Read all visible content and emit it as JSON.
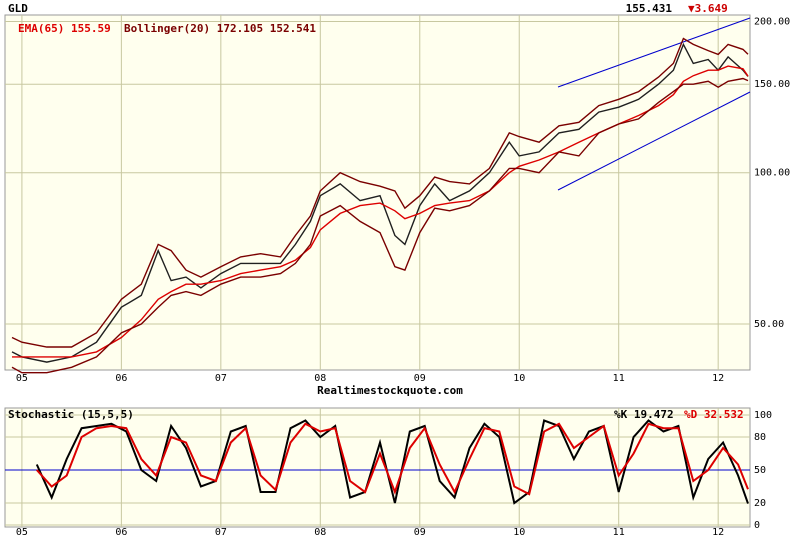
{
  "chart_data": [
    {
      "type": "line",
      "title": "GLD",
      "last_price": "155.431",
      "change": "▼3.649",
      "log_scale": true,
      "grid": true,
      "legend": [
        "EMA(65) 155.59",
        "Bollinger(20) 172.105 152.541"
      ],
      "footer": "Realtimestockquote.com",
      "xlim": [
        2004.83,
        2012.32
      ],
      "xticks": [
        {
          "value": 2005,
          "label": "05"
        },
        {
          "value": 2006,
          "label": "06"
        },
        {
          "value": 2007,
          "label": "07"
        },
        {
          "value": 2008,
          "label": "08"
        },
        {
          "value": 2009,
          "label": "09"
        },
        {
          "value": 2010,
          "label": "10"
        },
        {
          "value": 2011,
          "label": "11"
        },
        {
          "value": 2012,
          "label": "12"
        }
      ],
      "ylim": [
        40.5,
        206
      ],
      "yticks": [
        {
          "value": 50,
          "label": "50.00"
        },
        {
          "value": 100,
          "label": "100.00"
        },
        {
          "value": 150,
          "label": "150.00"
        },
        {
          "value": 200,
          "label": "200.00"
        }
      ],
      "x": [
        2004.9,
        2005.0,
        2005.25,
        2005.5,
        2005.75,
        2006.0,
        2006.2,
        2006.37,
        2006.5,
        2006.65,
        2006.8,
        2007.0,
        2007.2,
        2007.4,
        2007.6,
        2007.75,
        2007.9,
        2008.0,
        2008.2,
        2008.4,
        2008.6,
        2008.75,
        2008.85,
        2009.0,
        2009.15,
        2009.3,
        2009.5,
        2009.7,
        2009.9,
        2010.0,
        2010.2,
        2010.4,
        2010.6,
        2010.8,
        2011.0,
        2011.2,
        2011.4,
        2011.55,
        2011.65,
        2011.75,
        2011.9,
        2012.0,
        2012.1,
        2012.25,
        2012.3
      ],
      "series": [
        {
          "color": "#202020",
          "values": [
            44,
            43,
            42,
            43,
            46,
            54,
            57,
            70,
            61,
            62,
            59,
            63,
            66,
            66,
            66,
            72,
            80,
            90,
            95,
            88,
            90,
            75,
            72,
            86,
            95,
            88,
            92,
            100,
            115,
            108,
            110,
            120,
            122,
            132,
            135,
            140,
            150,
            160,
            180,
            165,
            168,
            160,
            170,
            160,
            155.4
          ]
        },
        {
          "color": "#dd0000",
          "values": [
            43,
            43,
            43,
            43,
            44,
            47,
            51,
            56,
            58,
            60,
            60,
            61,
            63,
            64,
            65,
            67,
            71,
            77,
            83,
            86,
            87,
            84,
            81,
            83,
            86,
            87,
            88,
            92,
            100,
            103,
            106,
            110,
            115,
            120,
            125,
            130,
            136,
            143,
            152,
            156,
            160,
            160,
            163,
            161,
            155.6
          ]
        },
        {
          "color": "#7a0000",
          "values": [
            47,
            46,
            45,
            45,
            48,
            56,
            60,
            72,
            70,
            64,
            62,
            65,
            68,
            69,
            68,
            75,
            82,
            92,
            100,
            96,
            94,
            92,
            85,
            90,
            98,
            96,
            95,
            102,
            120,
            118,
            115,
            124,
            126,
            136,
            140,
            145,
            155,
            165,
            185,
            180,
            175,
            172,
            180,
            176,
            172.1
          ]
        },
        {
          "color": "#7a0000",
          "values": [
            41,
            40,
            40,
            41,
            43,
            48,
            50,
            54,
            57,
            58,
            57,
            60,
            62,
            62,
            63,
            66,
            72,
            82,
            86,
            80,
            76,
            65,
            64,
            76,
            85,
            84,
            86,
            92,
            102,
            102,
            100,
            110,
            108,
            120,
            125,
            128,
            138,
            145,
            150,
            150,
            152,
            148,
            152,
            154,
            152.5
          ]
        }
      ]
    },
    {
      "type": "line",
      "title": "Stochastic (15,5,5)",
      "grid": true,
      "xlim": [
        2004.83,
        2012.32
      ],
      "xticks": [
        {
          "value": 2005,
          "label": "05"
        },
        {
          "value": 2006,
          "label": "06"
        },
        {
          "value": 2007,
          "label": "07"
        },
        {
          "value": 2008,
          "label": "08"
        },
        {
          "value": 2009,
          "label": "09"
        },
        {
          "value": 2010,
          "label": "10"
        },
        {
          "value": 2011,
          "label": "11"
        },
        {
          "value": 2012,
          "label": "12"
        }
      ],
      "ylim": [
        0,
        100
      ],
      "yticks": [
        0,
        20,
        50,
        80,
        100
      ],
      "midline": 50,
      "x": [
        2005.15,
        2005.3,
        2005.45,
        2005.6,
        2005.75,
        2005.9,
        2006.05,
        2006.2,
        2006.35,
        2006.5,
        2006.65,
        2006.8,
        2006.95,
        2007.1,
        2007.25,
        2007.4,
        2007.55,
        2007.7,
        2007.85,
        2008.0,
        2008.15,
        2008.3,
        2008.45,
        2008.6,
        2008.75,
        2008.9,
        2009.05,
        2009.2,
        2009.35,
        2009.5,
        2009.65,
        2009.8,
        2009.95,
        2010.1,
        2010.25,
        2010.4,
        2010.55,
        2010.7,
        2010.85,
        2011.0,
        2011.15,
        2011.3,
        2011.45,
        2011.6,
        2011.75,
        2011.9,
        2012.05,
        2012.2,
        2012.3
      ],
      "series": [
        {
          "name": "%K 19.472",
          "color": "#000000",
          "values": [
            55,
            25,
            60,
            88,
            90,
            92,
            85,
            50,
            40,
            90,
            70,
            35,
            40,
            85,
            90,
            30,
            30,
            88,
            95,
            80,
            90,
            25,
            30,
            75,
            20,
            85,
            90,
            40,
            25,
            70,
            92,
            80,
            20,
            30,
            95,
            90,
            60,
            85,
            90,
            30,
            80,
            95,
            85,
            90,
            25,
            60,
            75,
            45,
            19.5
          ]
        },
        {
          "name": "%D 32.532",
          "color": "#dd0000",
          "values": [
            50,
            35,
            45,
            80,
            88,
            90,
            88,
            60,
            45,
            80,
            75,
            45,
            40,
            75,
            88,
            45,
            32,
            75,
            92,
            85,
            88,
            40,
            30,
            65,
            30,
            70,
            88,
            55,
            30,
            60,
            88,
            85,
            35,
            28,
            85,
            92,
            70,
            80,
            90,
            45,
            65,
            92,
            88,
            88,
            40,
            50,
            70,
            55,
            32.5
          ]
        }
      ]
    }
  ]
}
